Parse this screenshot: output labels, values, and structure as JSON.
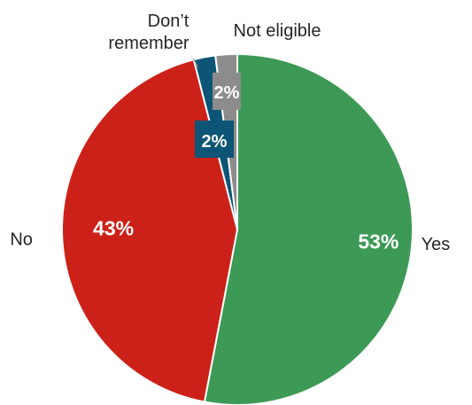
{
  "chart_data": {
    "type": "pie",
    "title": "",
    "slices": [
      {
        "label": "Yes",
        "value": 53,
        "value_label": "53%",
        "color": "#3d9a56"
      },
      {
        "label": "No",
        "value": 43,
        "value_label": "43%",
        "color": "#cc2118"
      },
      {
        "label_lines": [
          "Don’t",
          "remember"
        ],
        "value": 2,
        "value_label": "2%",
        "color": "#0d5576"
      },
      {
        "label": "Not eligible",
        "value": 2,
        "value_label": "2%",
        "color": "#8c8c8c"
      }
    ],
    "start": "top",
    "direction": "clockwise",
    "legend": "none"
  }
}
